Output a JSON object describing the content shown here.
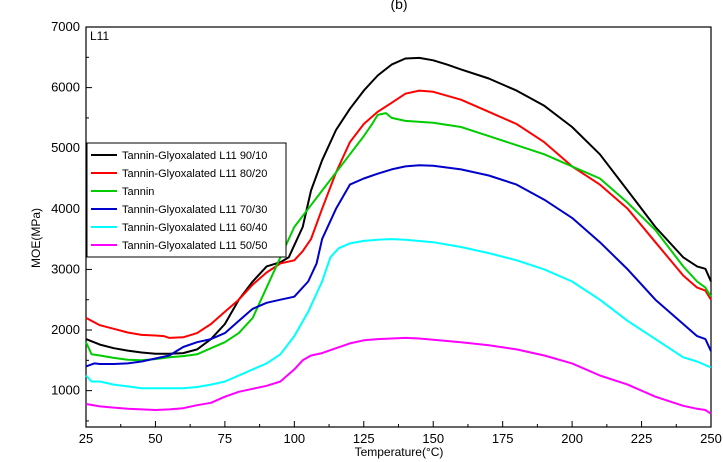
{
  "panel_label_top": "(b)",
  "chart_data": {
    "type": "line",
    "title": "",
    "annotation": "L11",
    "xlabel": "Temperature(°C)",
    "ylabel": "MOE(MPa)",
    "xlim": [
      25,
      250
    ],
    "ylim": [
      400,
      7000
    ],
    "x_ticks": [
      25,
      50,
      75,
      100,
      125,
      150,
      175,
      200,
      225,
      250
    ],
    "y_ticks": [
      1000,
      2000,
      3000,
      4000,
      5000,
      6000,
      7000
    ],
    "grid": false,
    "legend_position": "left-middle",
    "series": [
      {
        "name": "Tannin-Glyoxalated L11 90/10",
        "color": "#000000",
        "points": [
          [
            25,
            1850
          ],
          [
            30,
            1760
          ],
          [
            35,
            1700
          ],
          [
            40,
            1660
          ],
          [
            45,
            1630
          ],
          [
            50,
            1610
          ],
          [
            55,
            1610
          ],
          [
            60,
            1620
          ],
          [
            65,
            1680
          ],
          [
            70,
            1850
          ],
          [
            75,
            2100
          ],
          [
            80,
            2500
          ],
          [
            85,
            2800
          ],
          [
            90,
            3050
          ],
          [
            95,
            3120
          ],
          [
            98,
            3200
          ],
          [
            100,
            3400
          ],
          [
            103,
            3700
          ],
          [
            106,
            4300
          ],
          [
            110,
            4800
          ],
          [
            115,
            5300
          ],
          [
            120,
            5650
          ],
          [
            125,
            5950
          ],
          [
            130,
            6200
          ],
          [
            135,
            6380
          ],
          [
            140,
            6480
          ],
          [
            145,
            6490
          ],
          [
            150,
            6450
          ],
          [
            155,
            6380
          ],
          [
            160,
            6300
          ],
          [
            170,
            6150
          ],
          [
            180,
            5950
          ],
          [
            190,
            5700
          ],
          [
            200,
            5350
          ],
          [
            210,
            4900
          ],
          [
            220,
            4300
          ],
          [
            230,
            3700
          ],
          [
            240,
            3200
          ],
          [
            245,
            3050
          ],
          [
            248,
            3010
          ],
          [
            250,
            2800
          ]
        ]
      },
      {
        "name": "Tannin-Glyoxalated L11 80/20",
        "color": "#ff0000",
        "points": [
          [
            25,
            2200
          ],
          [
            30,
            2080
          ],
          [
            35,
            2020
          ],
          [
            40,
            1960
          ],
          [
            45,
            1920
          ],
          [
            50,
            1910
          ],
          [
            53,
            1900
          ],
          [
            55,
            1870
          ],
          [
            60,
            1880
          ],
          [
            65,
            1950
          ],
          [
            70,
            2100
          ],
          [
            75,
            2300
          ],
          [
            80,
            2500
          ],
          [
            85,
            2750
          ],
          [
            90,
            2950
          ],
          [
            95,
            3100
          ],
          [
            100,
            3150
          ],
          [
            103,
            3300
          ],
          [
            106,
            3500
          ],
          [
            110,
            4000
          ],
          [
            115,
            4600
          ],
          [
            120,
            5100
          ],
          [
            125,
            5400
          ],
          [
            130,
            5600
          ],
          [
            135,
            5750
          ],
          [
            140,
            5900
          ],
          [
            145,
            5950
          ],
          [
            150,
            5930
          ],
          [
            160,
            5800
          ],
          [
            170,
            5600
          ],
          [
            180,
            5400
          ],
          [
            190,
            5100
          ],
          [
            200,
            4700
          ],
          [
            210,
            4400
          ],
          [
            220,
            4000
          ],
          [
            230,
            3450
          ],
          [
            240,
            2900
          ],
          [
            245,
            2700
          ],
          [
            248,
            2650
          ],
          [
            250,
            2500
          ]
        ]
      },
      {
        "name": "Tannin",
        "color": "#00cc00",
        "points": [
          [
            25,
            1800
          ],
          [
            27,
            1600
          ],
          [
            30,
            1580
          ],
          [
            35,
            1540
          ],
          [
            40,
            1510
          ],
          [
            45,
            1500
          ],
          [
            50,
            1520
          ],
          [
            55,
            1550
          ],
          [
            60,
            1570
          ],
          [
            65,
            1600
          ],
          [
            70,
            1700
          ],
          [
            75,
            1800
          ],
          [
            80,
            1950
          ],
          [
            85,
            2200
          ],
          [
            90,
            2700
          ],
          [
            95,
            3200
          ],
          [
            100,
            3700
          ],
          [
            105,
            4000
          ],
          [
            110,
            4300
          ],
          [
            115,
            4600
          ],
          [
            120,
            4900
          ],
          [
            125,
            5200
          ],
          [
            128,
            5400
          ],
          [
            130,
            5550
          ],
          [
            133,
            5580
          ],
          [
            135,
            5500
          ],
          [
            140,
            5450
          ],
          [
            150,
            5420
          ],
          [
            160,
            5350
          ],
          [
            170,
            5200
          ],
          [
            180,
            5050
          ],
          [
            190,
            4900
          ],
          [
            200,
            4700
          ],
          [
            210,
            4500
          ],
          [
            220,
            4100
          ],
          [
            230,
            3650
          ],
          [
            240,
            3050
          ],
          [
            245,
            2800
          ],
          [
            248,
            2700
          ],
          [
            250,
            2550
          ]
        ]
      },
      {
        "name": "Tannin-Glyoxalated L11 70/30",
        "color": "#0000cc",
        "points": [
          [
            25,
            1400
          ],
          [
            28,
            1450
          ],
          [
            30,
            1440
          ],
          [
            35,
            1440
          ],
          [
            40,
            1450
          ],
          [
            45,
            1480
          ],
          [
            50,
            1530
          ],
          [
            55,
            1580
          ],
          [
            60,
            1720
          ],
          [
            65,
            1800
          ],
          [
            70,
            1850
          ],
          [
            75,
            1950
          ],
          [
            80,
            2150
          ],
          [
            85,
            2350
          ],
          [
            90,
            2450
          ],
          [
            95,
            2500
          ],
          [
            100,
            2550
          ],
          [
            105,
            2800
          ],
          [
            108,
            3100
          ],
          [
            110,
            3500
          ],
          [
            115,
            4000
          ],
          [
            120,
            4400
          ],
          [
            125,
            4500
          ],
          [
            130,
            4580
          ],
          [
            135,
            4650
          ],
          [
            140,
            4700
          ],
          [
            145,
            4720
          ],
          [
            150,
            4710
          ],
          [
            160,
            4650
          ],
          [
            170,
            4550
          ],
          [
            180,
            4400
          ],
          [
            190,
            4150
          ],
          [
            200,
            3850
          ],
          [
            210,
            3450
          ],
          [
            220,
            3000
          ],
          [
            230,
            2500
          ],
          [
            240,
            2100
          ],
          [
            245,
            1900
          ],
          [
            248,
            1850
          ],
          [
            250,
            1650
          ]
        ]
      },
      {
        "name": "Tannin-Glyoxalated L11 60/40",
        "color": "#00ffff",
        "points": [
          [
            25,
            1250
          ],
          [
            27,
            1150
          ],
          [
            30,
            1150
          ],
          [
            35,
            1100
          ],
          [
            40,
            1070
          ],
          [
            45,
            1040
          ],
          [
            50,
            1040
          ],
          [
            55,
            1040
          ],
          [
            60,
            1040
          ],
          [
            65,
            1060
          ],
          [
            70,
            1100
          ],
          [
            75,
            1150
          ],
          [
            80,
            1250
          ],
          [
            85,
            1350
          ],
          [
            90,
            1450
          ],
          [
            95,
            1600
          ],
          [
            100,
            1900
          ],
          [
            105,
            2300
          ],
          [
            110,
            2800
          ],
          [
            113,
            3200
          ],
          [
            116,
            3350
          ],
          [
            120,
            3430
          ],
          [
            125,
            3470
          ],
          [
            130,
            3490
          ],
          [
            135,
            3500
          ],
          [
            140,
            3490
          ],
          [
            150,
            3450
          ],
          [
            160,
            3370
          ],
          [
            170,
            3270
          ],
          [
            180,
            3150
          ],
          [
            190,
            3000
          ],
          [
            200,
            2800
          ],
          [
            210,
            2500
          ],
          [
            220,
            2150
          ],
          [
            230,
            1850
          ],
          [
            240,
            1550
          ],
          [
            245,
            1480
          ],
          [
            250,
            1380
          ]
        ]
      },
      {
        "name": "Tannin-Glyoxalated L11 50/50",
        "color": "#ff00ff",
        "points": [
          [
            25,
            780
          ],
          [
            30,
            740
          ],
          [
            35,
            720
          ],
          [
            40,
            700
          ],
          [
            45,
            690
          ],
          [
            50,
            680
          ],
          [
            55,
            690
          ],
          [
            60,
            710
          ],
          [
            65,
            760
          ],
          [
            70,
            800
          ],
          [
            75,
            900
          ],
          [
            80,
            980
          ],
          [
            85,
            1030
          ],
          [
            90,
            1080
          ],
          [
            95,
            1150
          ],
          [
            100,
            1350
          ],
          [
            103,
            1500
          ],
          [
            106,
            1580
          ],
          [
            110,
            1620
          ],
          [
            115,
            1700
          ],
          [
            120,
            1780
          ],
          [
            125,
            1830
          ],
          [
            130,
            1850
          ],
          [
            135,
            1860
          ],
          [
            140,
            1870
          ],
          [
            145,
            1860
          ],
          [
            150,
            1840
          ],
          [
            160,
            1800
          ],
          [
            170,
            1750
          ],
          [
            180,
            1680
          ],
          [
            190,
            1580
          ],
          [
            200,
            1450
          ],
          [
            210,
            1250
          ],
          [
            220,
            1100
          ],
          [
            230,
            900
          ],
          [
            240,
            750
          ],
          [
            245,
            700
          ],
          [
            248,
            680
          ],
          [
            250,
            620
          ]
        ]
      }
    ]
  }
}
